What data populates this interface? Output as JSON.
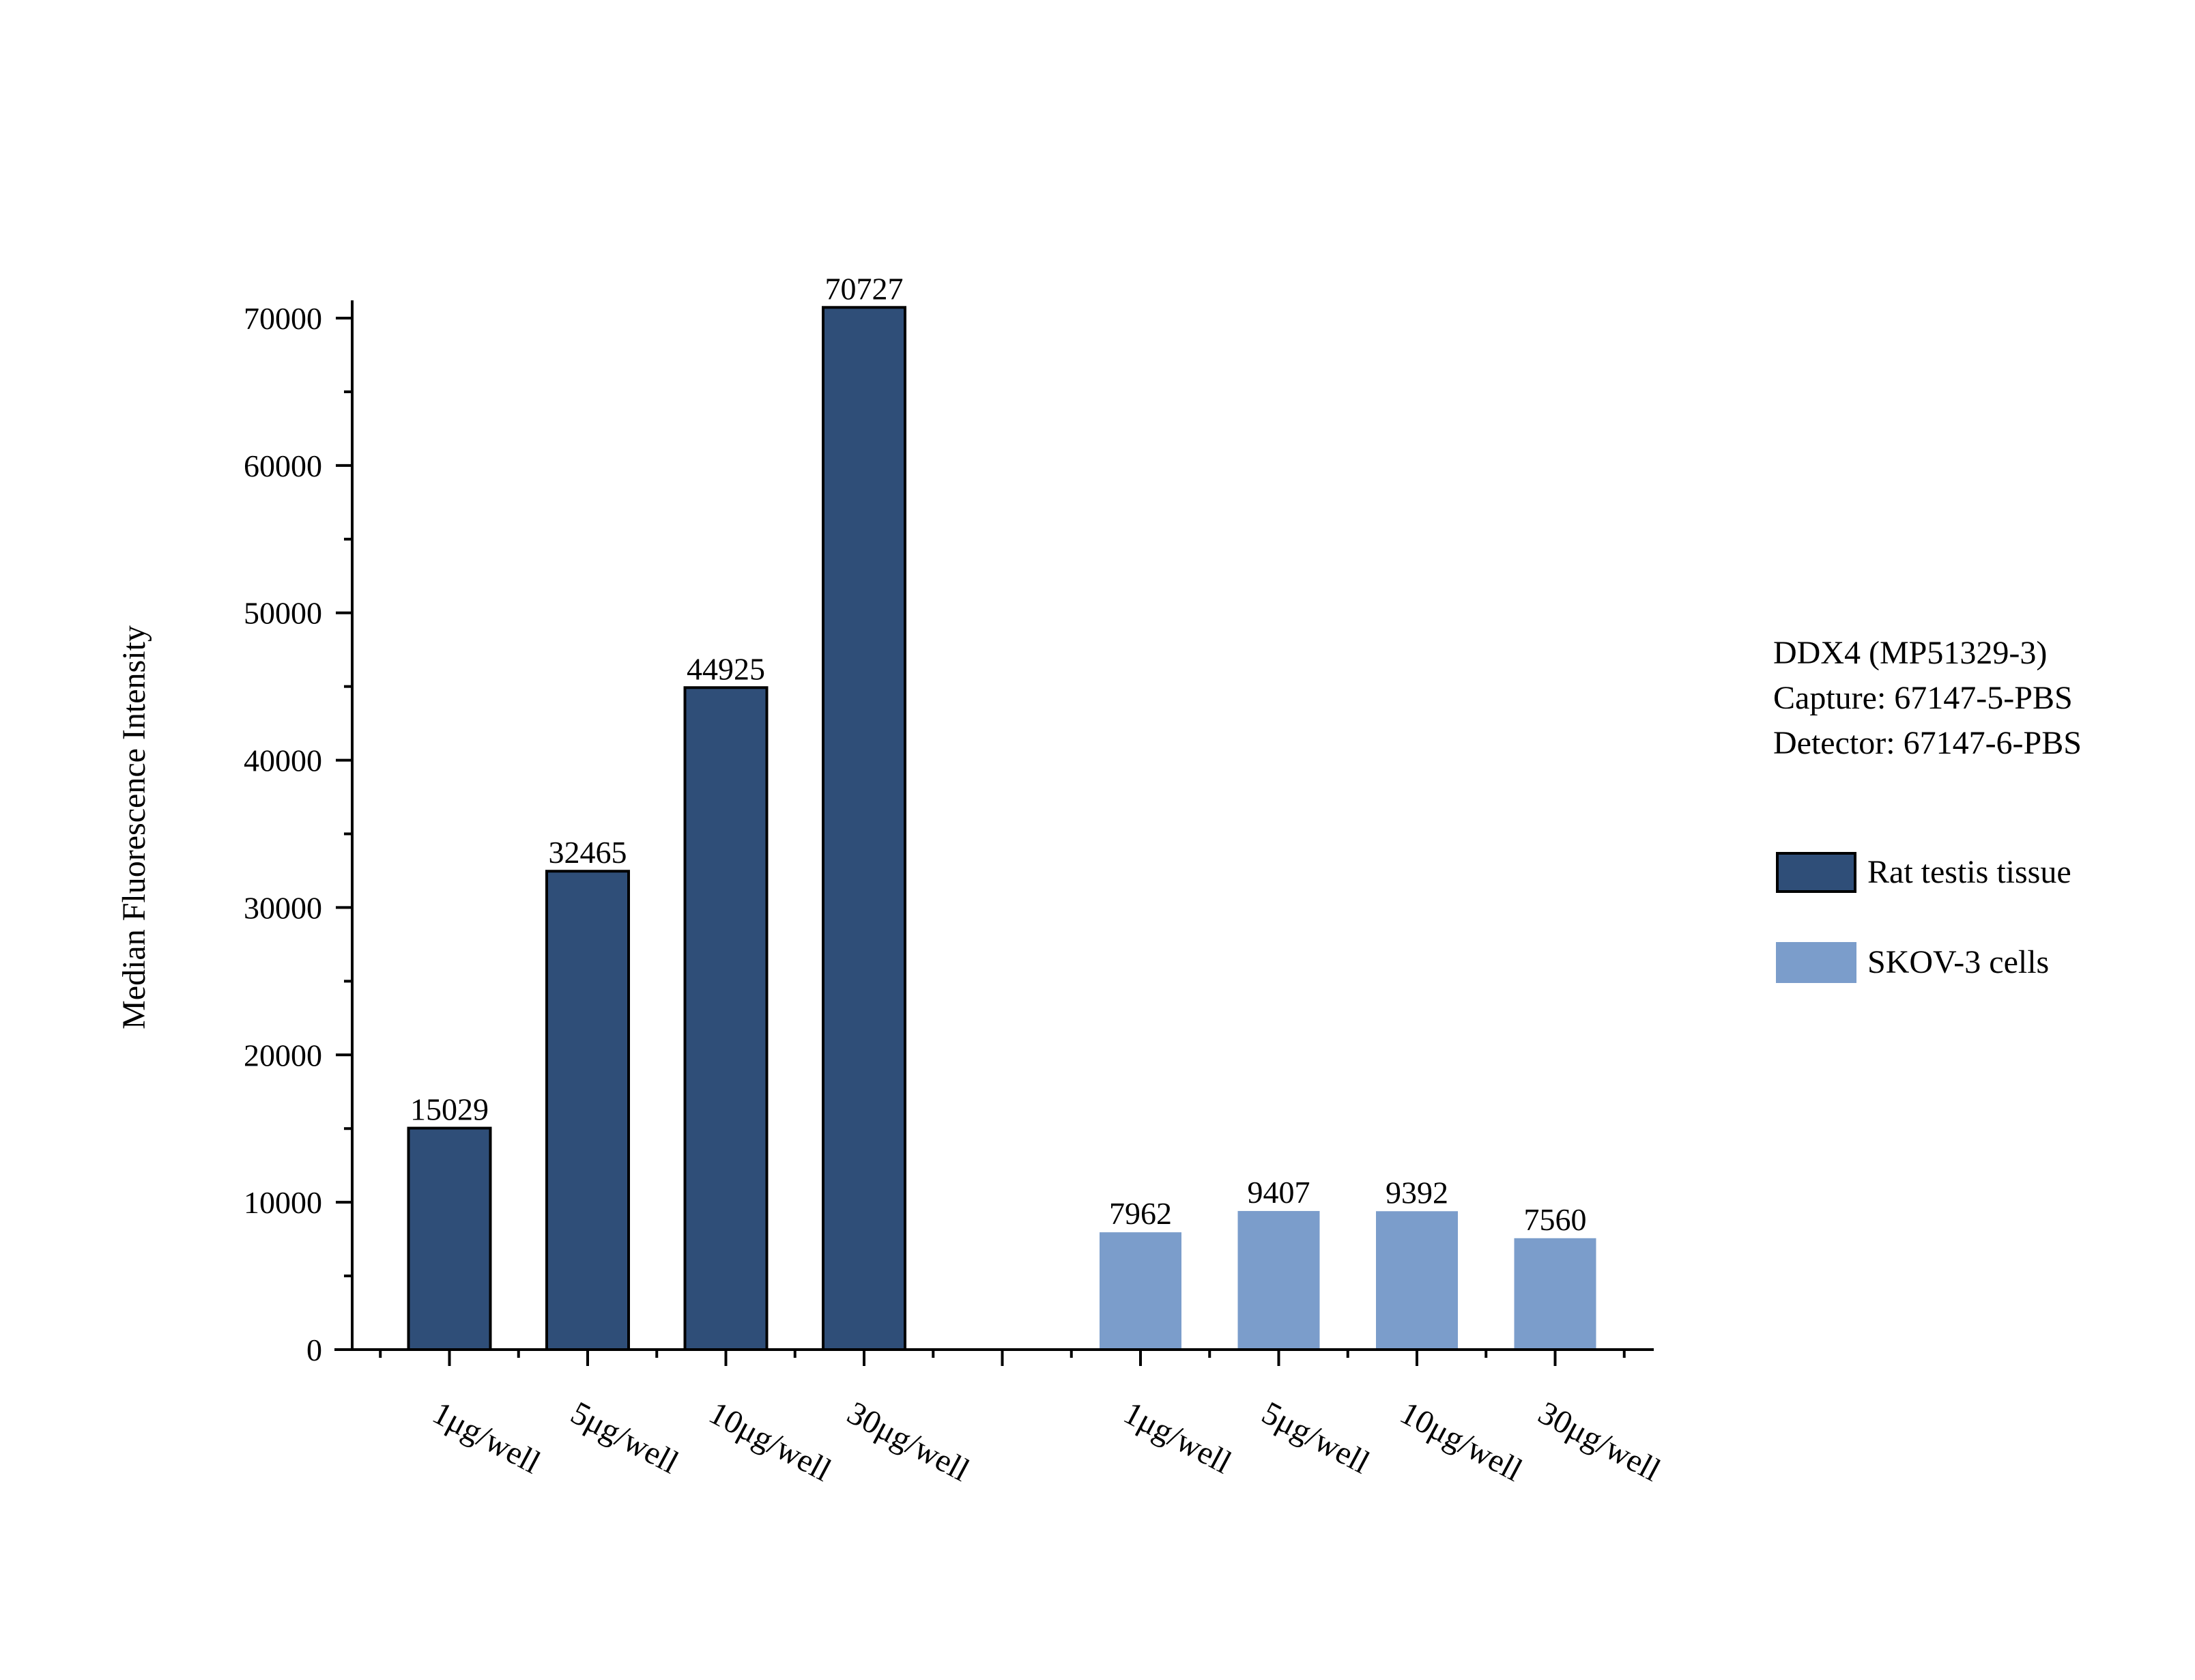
{
  "chart_data": {
    "type": "bar",
    "title": "",
    "xlabel": "",
    "ylabel": "Median Fluorescence Intensity",
    "ylim": [
      0,
      70000
    ],
    "yticks": [
      0,
      10000,
      20000,
      30000,
      40000,
      50000,
      60000,
      70000
    ],
    "ytick_labels": [
      "0",
      "10000",
      "20000",
      "30000",
      "40000",
      "50000",
      "60000",
      "70000"
    ],
    "grid": false,
    "legend_placement": "right",
    "groups": [
      {
        "name": "Rat testis tissue",
        "color": "#2f4e78",
        "outlined": true,
        "categories": [
          "1μg/well",
          "5μg/well",
          "10μg/well",
          "30μg/well"
        ],
        "values": [
          15029,
          32465,
          44925,
          70727
        ],
        "value_labels": [
          "15029",
          "32465",
          "44925",
          "70727"
        ]
      },
      {
        "name": "SKOV-3 cells",
        "color": "#7b9dcb",
        "outlined": false,
        "categories": [
          "1μg/well",
          "5μg/well",
          "10μg/well",
          "30μg/well"
        ],
        "values": [
          7962,
          9407,
          9392,
          7560
        ],
        "value_labels": [
          "7962",
          "9407",
          "9392",
          "7560"
        ]
      }
    ]
  },
  "info": {
    "line1": "DDX4 (MP51329-3)",
    "line2": "Capture: 67147-5-PBS",
    "line3": "Detector: 67147-6-PBS"
  },
  "legend": [
    {
      "label": "Rat testis tissue",
      "color": "#2f4e78",
      "outlined": true
    },
    {
      "label": "SKOV-3 cells",
      "color": "#7b9dcb",
      "outlined": false
    }
  ]
}
